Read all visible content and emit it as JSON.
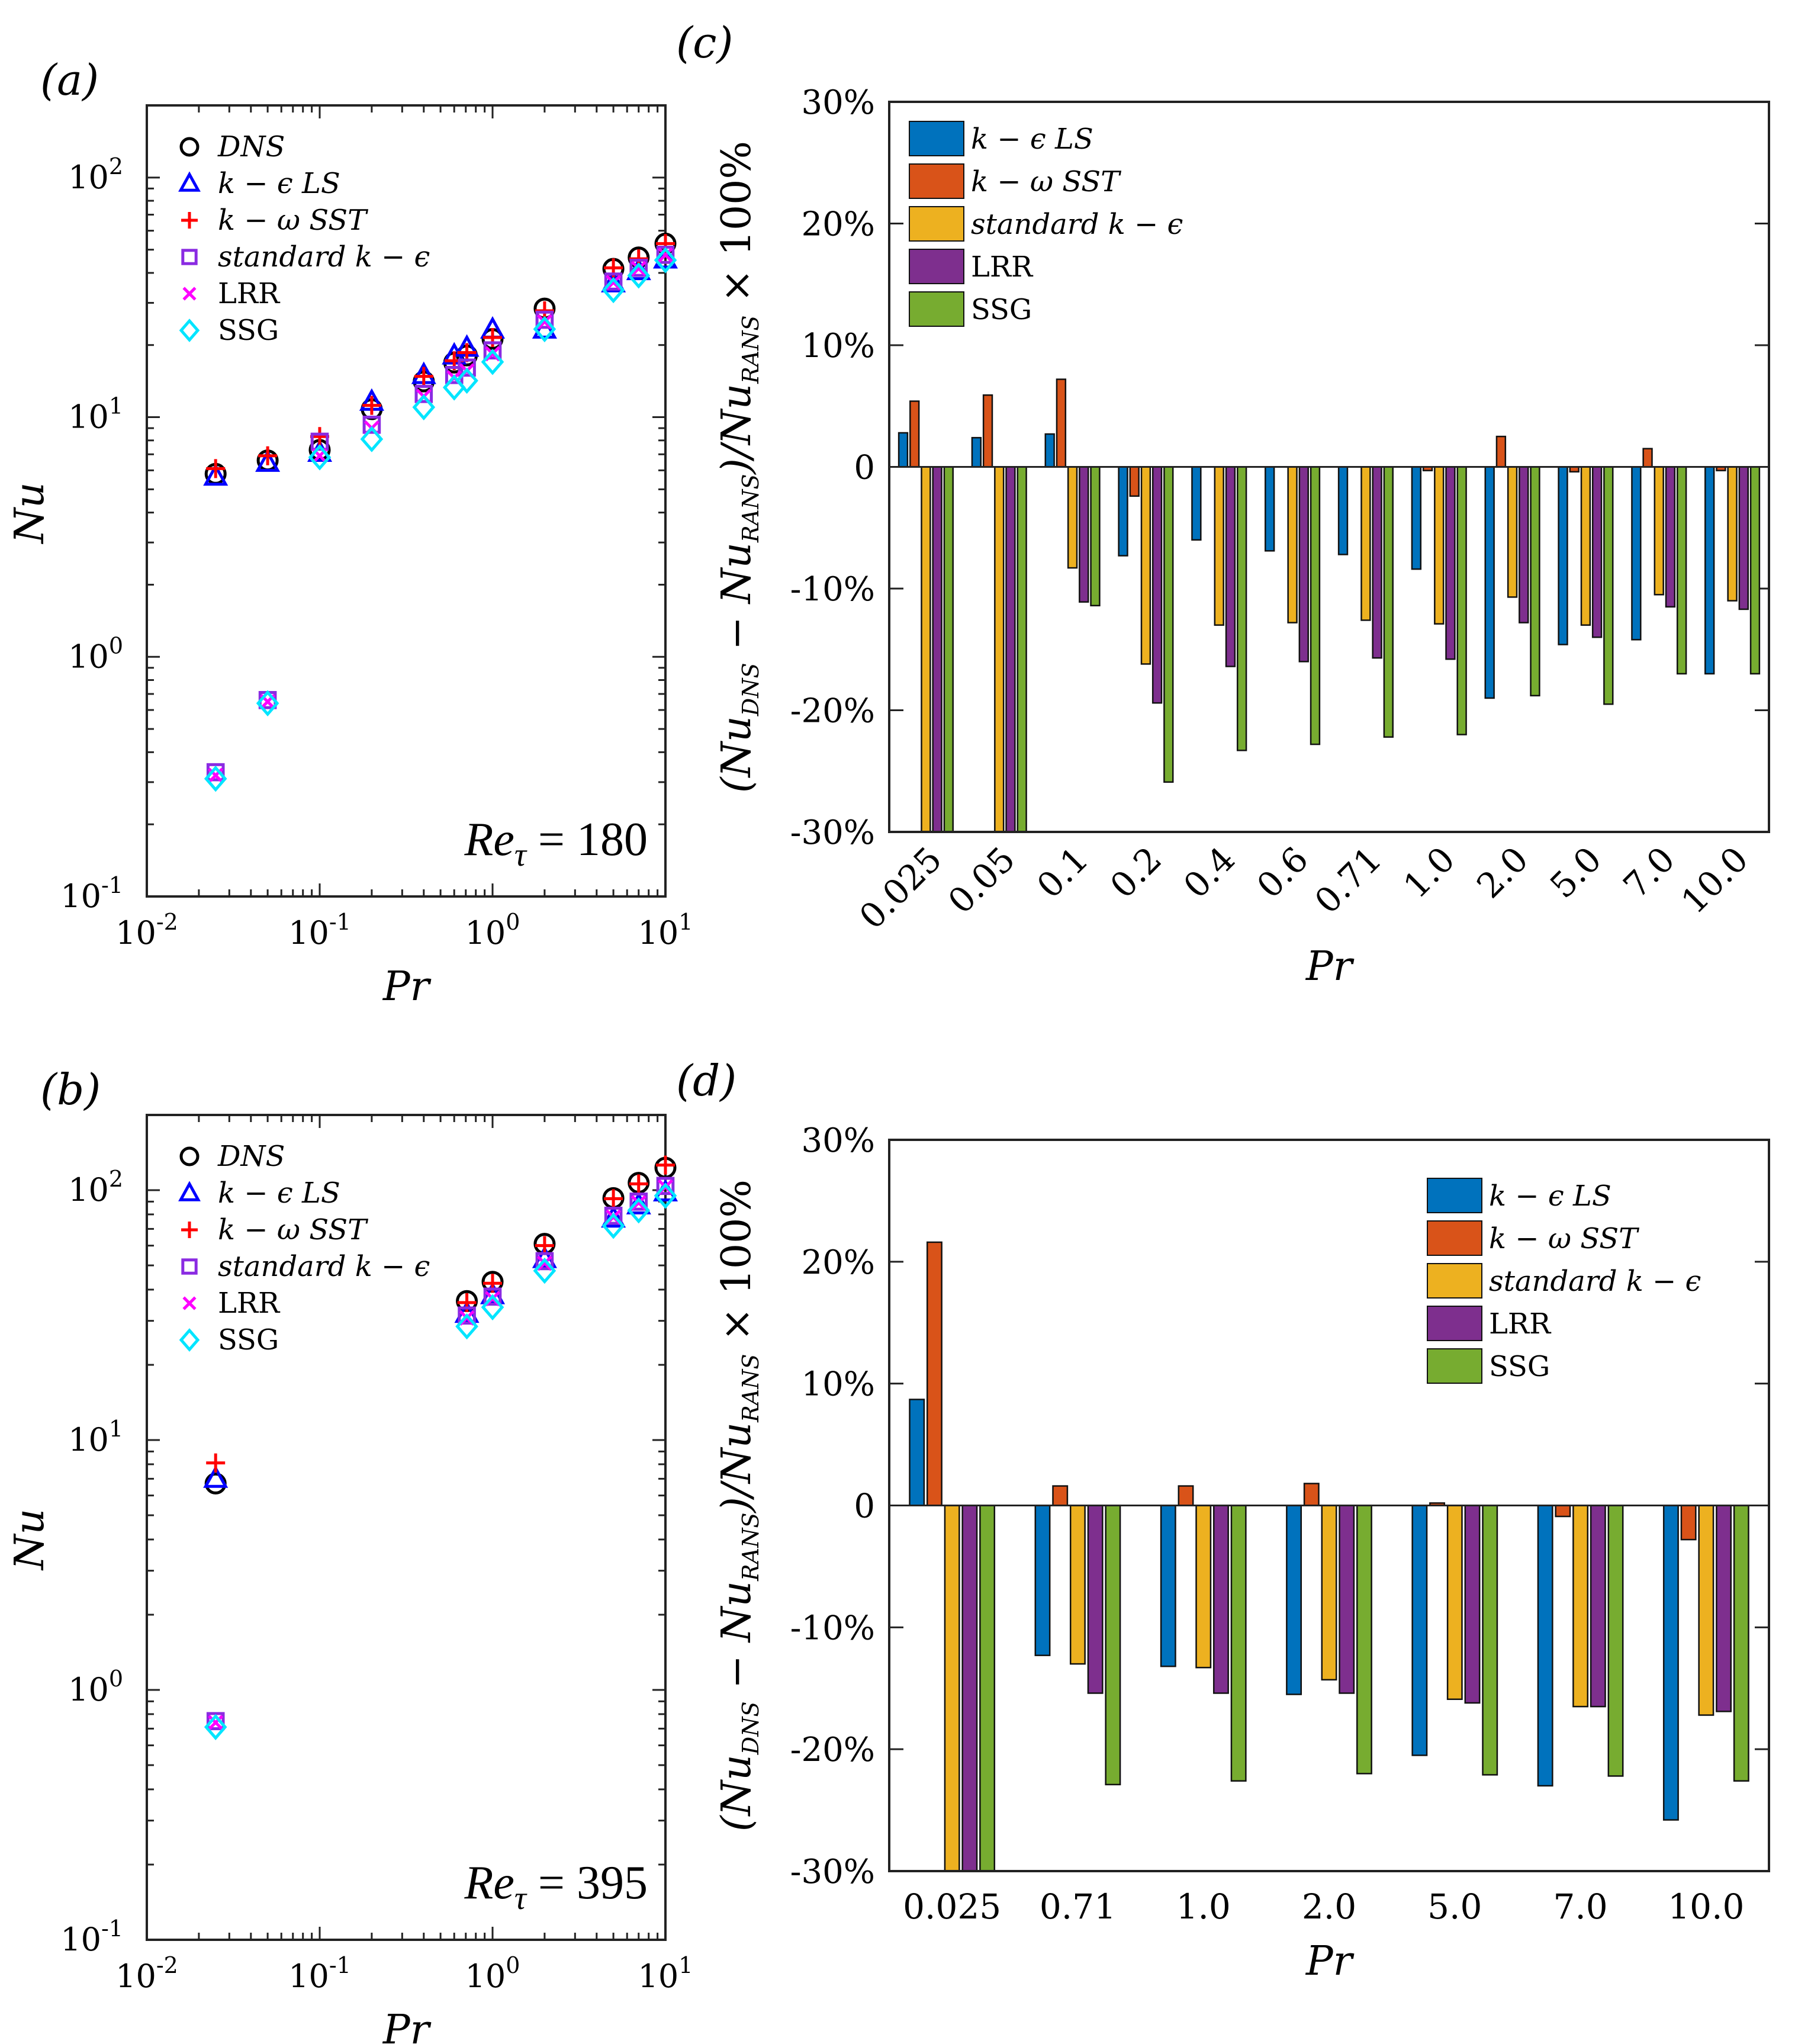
{
  "colors": {
    "dns": "#000000",
    "kelS": "#0000ff",
    "komegaSST": "#ff0000",
    "standard": "#8a2be2",
    "lrr": "#ff00ff",
    "ssg": "#00e5ff",
    "bar_kelS": "#0072bd",
    "bar_komegaSST": "#d95319",
    "bar_standard": "#edb120",
    "bar_lrr": "#7e2f8e",
    "bar_ssg": "#77ac30"
  },
  "chart_data": [
    {
      "id": "a",
      "panel_label": "(a)",
      "type": "scatter",
      "xscale": "log",
      "yscale": "log",
      "xlim": [
        0.01,
        10
      ],
      "ylim": [
        0.1,
        200
      ],
      "xlabel": "Pr",
      "ylabel": "Nu",
      "x_ticks": [
        {
          "value": 0.01,
          "base": "10",
          "exp": "-2"
        },
        {
          "value": 0.1,
          "base": "10",
          "exp": "-1"
        },
        {
          "value": 1,
          "base": "10",
          "exp": "0"
        },
        {
          "value": 10,
          "base": "10",
          "exp": "1"
        }
      ],
      "y_ticks": [
        {
          "value": 0.1,
          "base": "10",
          "exp": "-1"
        },
        {
          "value": 1,
          "base": "10",
          "exp": "0"
        },
        {
          "value": 10,
          "base": "10",
          "exp": "1"
        },
        {
          "value": 100,
          "base": "10",
          "exp": "2"
        }
      ],
      "annotation": {
        "prefix": "Re",
        "sub": "τ",
        "suffix": " = 180"
      },
      "legend_position": "top-left",
      "series": [
        {
          "name": "DNS",
          "marker": "circle",
          "x": [
            0.025,
            0.05,
            0.1,
            0.2,
            0.4,
            0.6,
            0.71,
            1.0,
            2.0,
            5.0,
            7.0,
            10.0
          ],
          "y": [
            5.8,
            6.6,
            7.3,
            10.8,
            14.1,
            16.9,
            18.1,
            21.2,
            28.4,
            41.6,
            46.4,
            53.0
          ]
        },
        {
          "name": "k − ϵ LS",
          "marker": "triangle",
          "x": [
            0.025,
            0.05,
            0.1,
            0.2,
            0.4,
            0.6,
            0.71,
            1.0,
            2.0,
            5.0,
            7.0,
            10.0
          ],
          "y": [
            5.65,
            6.45,
            7.1,
            11.6,
            15.0,
            18.1,
            19.5,
            23.2,
            23.2,
            36.2,
            40.7,
            45.5
          ]
        },
        {
          "name": "k − ω SST",
          "marker": "plus",
          "x": [
            0.025,
            0.05,
            0.1,
            0.2,
            0.4,
            0.6,
            0.71,
            1.0,
            2.0,
            5.0,
            7.0,
            10.0
          ],
          "y": [
            6.1,
            6.9,
            8.3,
            11.2,
            14.8,
            17.2,
            18.6,
            21.5,
            27.8,
            42.0,
            45.8,
            53.0
          ]
        },
        {
          "name": "standard k − ϵ",
          "marker": "square",
          "x": [
            0.025,
            0.05,
            0.1,
            0.2,
            0.4,
            0.6,
            0.71,
            1.0,
            2.0,
            5.0,
            7.0,
            10.0
          ],
          "y": [
            0.33,
            0.66,
            7.9,
            9.3,
            12.5,
            15.0,
            16.1,
            19.0,
            25.5,
            36.8,
            42.0,
            47.6
          ]
        },
        {
          "name": "LRR",
          "marker": "cross",
          "x": [
            0.025,
            0.05,
            0.1,
            0.2,
            0.4,
            0.6,
            0.71,
            1.0,
            2.0,
            5.0,
            7.0,
            10.0
          ],
          "y": [
            0.32,
            0.65,
            6.9,
            9.0,
            12.2,
            14.6,
            15.6,
            18.4,
            25.0,
            36.5,
            41.7,
            47.5
          ]
        },
        {
          "name": "SSG",
          "marker": "diamond",
          "x": [
            0.025,
            0.05,
            0.1,
            0.2,
            0.4,
            0.6,
            0.71,
            1.0,
            2.0,
            5.0,
            7.0,
            10.0
          ],
          "y": [
            0.31,
            0.64,
            6.8,
            8.1,
            11.0,
            13.3,
            14.2,
            17.0,
            23.3,
            33.9,
            39.0,
            45.2
          ]
        }
      ]
    },
    {
      "id": "b",
      "panel_label": "(b)",
      "type": "scatter",
      "xscale": "log",
      "yscale": "log",
      "xlim": [
        0.01,
        10
      ],
      "ylim": [
        0.1,
        200
      ],
      "xlabel": "Pr",
      "ylabel": "Nu",
      "x_ticks": [
        {
          "value": 0.01,
          "base": "10",
          "exp": "-2"
        },
        {
          "value": 0.1,
          "base": "10",
          "exp": "-1"
        },
        {
          "value": 1,
          "base": "10",
          "exp": "0"
        },
        {
          "value": 10,
          "base": "10",
          "exp": "1"
        }
      ],
      "y_ticks": [
        {
          "value": 0.1,
          "base": "10",
          "exp": "-1"
        },
        {
          "value": 1,
          "base": "10",
          "exp": "0"
        },
        {
          "value": 10,
          "base": "10",
          "exp": "1"
        },
        {
          "value": 100,
          "base": "10",
          "exp": "2"
        }
      ],
      "annotation": {
        "prefix": "Re",
        "sub": "τ",
        "suffix": " = 395"
      },
      "legend_position": "top-left",
      "series": [
        {
          "name": "DNS",
          "marker": "circle",
          "x": [
            0.025,
            0.71,
            1.0,
            2.0,
            5.0,
            7.0,
            10.0
          ],
          "y": [
            6.7,
            36.0,
            43.0,
            61.0,
            93.0,
            107.0,
            123.0
          ]
        },
        {
          "name": "k − ϵ LS",
          "marker": "triangle",
          "x": [
            0.025,
            0.71,
            1.0,
            2.0,
            5.0,
            7.0,
            10.0
          ],
          "y": [
            7.0,
            32.0,
            38.0,
            53.0,
            77.0,
            87.0,
            98.0
          ]
        },
        {
          "name": "k − ω SST",
          "marker": "plus",
          "x": [
            0.025,
            0.71,
            1.0,
            2.0,
            5.0,
            7.0,
            10.0
          ],
          "y": [
            8.1,
            35.5,
            42.4,
            60.0,
            92.5,
            106.0,
            126.0
          ]
        },
        {
          "name": "standard k − ϵ",
          "marker": "square",
          "x": [
            0.025,
            0.71,
            1.0,
            2.0,
            5.0,
            7.0,
            10.0
          ],
          "y": [
            0.75,
            31.5,
            37.5,
            52.0,
            79.0,
            90.0,
            104.0
          ]
        },
        {
          "name": "LRR",
          "marker": "cross",
          "x": [
            0.025,
            0.71,
            1.0,
            2.0,
            5.0,
            7.0,
            10.0
          ],
          "y": [
            0.74,
            30.8,
            36.8,
            51.0,
            78.0,
            89.0,
            103.0
          ]
        },
        {
          "name": "SSG",
          "marker": "diamond",
          "x": [
            0.025,
            0.71,
            1.0,
            2.0,
            5.0,
            7.0,
            10.0
          ],
          "y": [
            0.71,
            28.5,
            34.0,
            47.6,
            72.0,
            83.0,
            95.0
          ]
        }
      ]
    },
    {
      "id": "c",
      "panel_label": "(c)",
      "type": "bar",
      "ylim": [
        -30,
        30
      ],
      "y_ticks": [
        "-30%",
        "-20%",
        "-10%",
        "0",
        "10%",
        "20%",
        "30%"
      ],
      "y_tick_values": [
        -30,
        -20,
        -10,
        0,
        10,
        20,
        30
      ],
      "xlabel": "Pr",
      "ylabel": "(Nu_DNS − Nu_RANS)/Nu_RANS × 100%",
      "categories": [
        "0.025",
        "0.05",
        "0.1",
        "0.2",
        "0.4",
        "0.6",
        "0.71",
        "1.0",
        "2.0",
        "5.0",
        "7.0",
        "10.0"
      ],
      "category_label_rotation": -45,
      "legend_position": "top-left",
      "series": [
        {
          "name": "k − ϵ LS",
          "values": [
            2.8,
            2.4,
            2.7,
            -7.3,
            -6.0,
            -6.9,
            -7.2,
            -8.4,
            -19.0,
            -14.6,
            -14.2,
            -17.0
          ]
        },
        {
          "name": "k − ω SST",
          "values": [
            5.4,
            5.9,
            7.2,
            -2.4,
            0.0,
            0.0,
            0.0,
            -0.3,
            2.5,
            -0.4,
            1.5,
            -0.3
          ]
        },
        {
          "name": "standard k − ϵ",
          "values": [
            -30.0,
            -30.0,
            -8.3,
            -16.2,
            -13.0,
            -12.8,
            -12.6,
            -12.9,
            -10.7,
            -13.0,
            -10.5,
            -11.0
          ]
        },
        {
          "name": "LRR",
          "values": [
            -30.0,
            -30.0,
            -11.1,
            -19.4,
            -16.4,
            -16.0,
            -15.7,
            -15.8,
            -12.8,
            -14.0,
            -11.5,
            -11.7
          ]
        },
        {
          "name": "SSG",
          "values": [
            -30.0,
            -30.0,
            -11.4,
            -25.9,
            -23.3,
            -22.8,
            -22.2,
            -22.0,
            -18.8,
            -19.5,
            -17.0,
            -17.0
          ]
        }
      ]
    },
    {
      "id": "d",
      "panel_label": "(d)",
      "type": "bar",
      "ylim": [
        -30,
        30
      ],
      "y_ticks": [
        "-30%",
        "-20%",
        "-10%",
        "0",
        "10%",
        "20%",
        "30%"
      ],
      "y_tick_values": [
        -30,
        -20,
        -10,
        0,
        10,
        20,
        30
      ],
      "xlabel": "Pr",
      "ylabel": "(Nu_DNS − Nu_RANS)/Nu_RANS × 100%",
      "categories": [
        "0.025",
        "0.71",
        "1.0",
        "2.0",
        "5.0",
        "7.0",
        "10.0"
      ],
      "category_label_rotation": 0,
      "legend_position": "top-right",
      "series": [
        {
          "name": "k − ϵ LS",
          "values": [
            8.7,
            -12.3,
            -13.2,
            -15.5,
            -20.5,
            -23.0,
            -25.8
          ]
        },
        {
          "name": "k − ω SST",
          "values": [
            21.6,
            1.6,
            1.6,
            1.8,
            0.2,
            -0.9,
            -2.8
          ]
        },
        {
          "name": "standard k − ϵ",
          "values": [
            -30.0,
            -13.0,
            -13.3,
            -14.3,
            -15.9,
            -16.5,
            -17.2
          ]
        },
        {
          "name": "LRR",
          "values": [
            -30.0,
            -15.4,
            -15.4,
            -15.4,
            -16.2,
            -16.5,
            -16.9
          ]
        },
        {
          "name": "SSG",
          "values": [
            -30.0,
            -22.9,
            -22.6,
            -22.0,
            -22.1,
            -22.2,
            -22.6
          ]
        }
      ]
    }
  ]
}
